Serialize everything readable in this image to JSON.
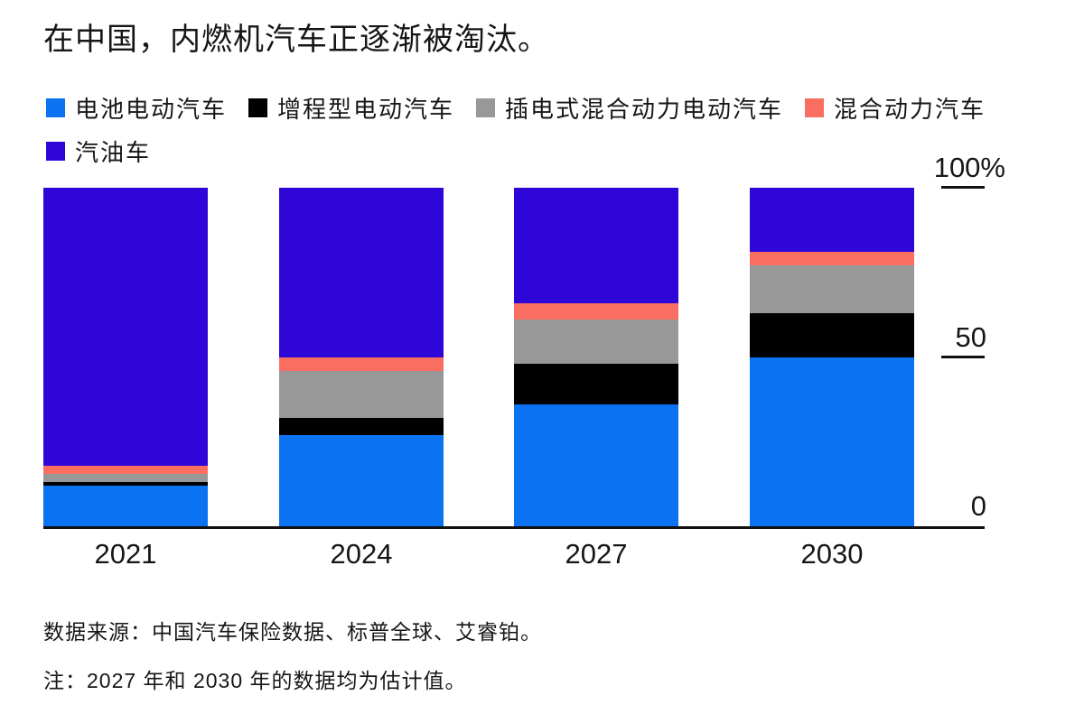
{
  "page": {
    "background": "#ffffff"
  },
  "title": "在中国，内燃机汽车正逐渐被淘汰。",
  "chart_data": {
    "type": "bar",
    "stacked": true,
    "unit": "%",
    "title": "在中国，内燃机汽车正逐渐被淘汰。",
    "categories": [
      "2021",
      "2024",
      "2027",
      "2030"
    ],
    "series": [
      {
        "key": "bev",
        "name": "电池电动汽车",
        "color": "#0b72f2",
        "values": [
          12,
          27,
          36,
          50
        ]
      },
      {
        "key": "erev",
        "name": "增程型电动汽车",
        "color": "#000000",
        "values": [
          1,
          5,
          12,
          13
        ]
      },
      {
        "key": "phev",
        "name": "插电式混合动力电动汽车",
        "color": "#989898",
        "values": [
          2.5,
          14,
          13,
          14
        ]
      },
      {
        "key": "hev",
        "name": "混合动力汽车",
        "color": "#fa6e62",
        "values": [
          2.5,
          4,
          5,
          4
        ]
      },
      {
        "key": "gasoline",
        "name": "汽油车",
        "color": "#2f06d8",
        "values": [
          82,
          50,
          34,
          19
        ]
      }
    ],
    "stack_order_bottom_to_top": [
      "bev",
      "erev",
      "phev",
      "hev",
      "gasoline"
    ],
    "ylim": [
      0,
      100
    ],
    "yticks": [
      {
        "label": "100%",
        "value": 100
      },
      {
        "label": "50",
        "value": 50
      },
      {
        "label": "0",
        "value": 0
      }
    ],
    "grid": false,
    "legend_position": "top-left",
    "legend_rows": [
      [
        "bev",
        "erev",
        "phev",
        "hev"
      ],
      [
        "gasoline"
      ]
    ],
    "axis_color": "#111111"
  },
  "footer": {
    "source": "数据来源：中国汽车保险数据、标普全球、艾睿铂。",
    "note": "注：2027 年和 2030 年的数据均为估计值。"
  }
}
